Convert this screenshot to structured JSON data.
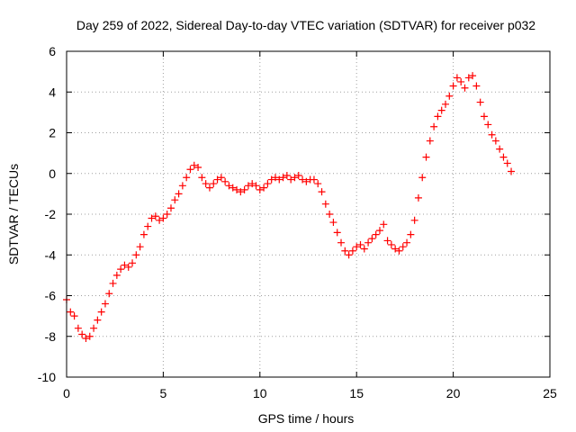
{
  "chart_data": {
    "type": "scatter",
    "title": "Day 259 of 2022, Sidereal Day-to-day VTEC variation (SDTVAR) for receiver p032",
    "xlabel": "GPS time / hours",
    "ylabel": "SDTVAR / TECUs",
    "xlim": [
      0,
      25
    ],
    "ylim": [
      -10,
      6
    ],
    "xticks": [
      0,
      5,
      10,
      15,
      20,
      25
    ],
    "yticks": [
      -10,
      -8,
      -6,
      -4,
      -2,
      0,
      2,
      4,
      6
    ],
    "grid": true,
    "legend": "none",
    "marker": "+",
    "series": [
      {
        "name": "SDTVAR",
        "color": "#ff0000",
        "x": [
          0.0,
          0.2,
          0.4,
          0.6,
          0.8,
          1.0,
          1.2,
          1.4,
          1.6,
          1.8,
          2.0,
          2.2,
          2.4,
          2.6,
          2.8,
          3.0,
          3.2,
          3.4,
          3.6,
          3.8,
          4.0,
          4.2,
          4.4,
          4.6,
          4.8,
          5.0,
          5.2,
          5.4,
          5.6,
          5.8,
          6.0,
          6.2,
          6.4,
          6.6,
          6.8,
          7.0,
          7.2,
          7.4,
          7.6,
          7.8,
          8.0,
          8.2,
          8.4,
          8.6,
          8.8,
          9.0,
          9.2,
          9.4,
          9.6,
          9.8,
          10.0,
          10.2,
          10.4,
          10.6,
          10.8,
          11.0,
          11.2,
          11.4,
          11.6,
          11.8,
          12.0,
          12.2,
          12.4,
          12.6,
          12.8,
          13.0,
          13.2,
          13.4,
          13.6,
          13.8,
          14.0,
          14.2,
          14.4,
          14.6,
          14.8,
          15.0,
          15.2,
          15.4,
          15.6,
          15.8,
          16.0,
          16.2,
          16.4,
          16.6,
          16.8,
          17.0,
          17.2,
          17.4,
          17.6,
          17.8,
          18.0,
          18.2,
          18.4,
          18.6,
          18.8,
          19.0,
          19.2,
          19.4,
          19.6,
          19.8,
          20.0,
          20.2,
          20.4,
          20.6,
          20.8,
          21.0,
          21.2,
          21.4,
          21.6,
          21.8,
          22.0,
          22.2,
          22.4,
          22.6,
          22.8,
          23.0
        ],
        "y": [
          -6.2,
          -6.8,
          -7.0,
          -7.6,
          -7.9,
          -8.1,
          -8.0,
          -7.6,
          -7.2,
          -6.8,
          -6.4,
          -5.9,
          -5.4,
          -5.0,
          -4.7,
          -4.5,
          -4.6,
          -4.4,
          -4.0,
          -3.6,
          -3.0,
          -2.6,
          -2.2,
          -2.1,
          -2.3,
          -2.2,
          -2.0,
          -1.7,
          -1.3,
          -1.0,
          -0.6,
          -0.2,
          0.2,
          0.4,
          0.3,
          -0.2,
          -0.5,
          -0.7,
          -0.5,
          -0.3,
          -0.2,
          -0.4,
          -0.6,
          -0.7,
          -0.8,
          -0.9,
          -0.8,
          -0.6,
          -0.5,
          -0.6,
          -0.8,
          -0.7,
          -0.5,
          -0.3,
          -0.2,
          -0.3,
          -0.2,
          -0.1,
          -0.3,
          -0.2,
          -0.1,
          -0.3,
          -0.4,
          -0.3,
          -0.3,
          -0.5,
          -0.9,
          -1.5,
          -2.0,
          -2.4,
          -2.9,
          -3.4,
          -3.8,
          -4.0,
          -3.8,
          -3.6,
          -3.5,
          -3.7,
          -3.4,
          -3.2,
          -3.0,
          -2.8,
          -2.5,
          -3.3,
          -3.5,
          -3.7,
          -3.8,
          -3.6,
          -3.4,
          -3.0,
          -2.3,
          -1.2,
          -0.2,
          0.8,
          1.6,
          2.3,
          2.8,
          3.1,
          3.4,
          3.8,
          4.3,
          4.7,
          4.5,
          4.2,
          4.7,
          4.8,
          4.3,
          3.5,
          2.8,
          2.4,
          1.9,
          1.6,
          1.2,
          0.8,
          0.5,
          0.1
        ]
      }
    ]
  }
}
